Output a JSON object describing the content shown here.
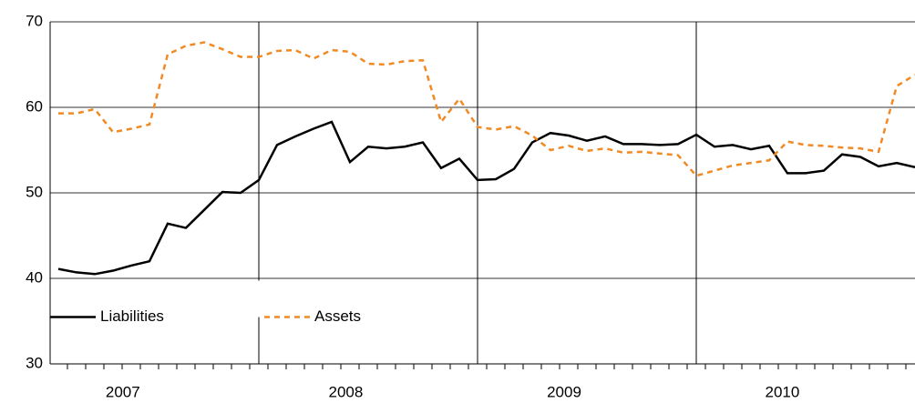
{
  "chart_data": {
    "type": "line",
    "x": [
      1,
      2,
      3,
      4,
      5,
      6,
      7,
      8,
      9,
      10,
      11,
      12,
      13,
      14,
      15,
      16,
      17,
      18,
      19,
      20,
      21,
      22,
      23,
      24,
      25,
      26,
      27,
      28,
      29,
      30,
      31,
      32,
      33,
      34,
      35,
      36,
      37,
      38,
      39,
      40,
      41,
      42,
      43,
      44,
      45,
      46,
      47,
      48
    ],
    "series": [
      {
        "name": "Liabilities",
        "color": "#000000",
        "dashed": false,
        "values": [
          41.1,
          40.7,
          40.5,
          40.9,
          41.5,
          42.0,
          46.4,
          45.9,
          48.0,
          50.1,
          50.0,
          51.5,
          55.6,
          56.6,
          57.5,
          58.3,
          53.6,
          55.4,
          55.2,
          55.4,
          55.9,
          52.9,
          54.0,
          51.5,
          51.6,
          52.8,
          55.9,
          57.0,
          56.7,
          56.1,
          56.6,
          55.7,
          55.7,
          55.6,
          55.7,
          56.8,
          55.4,
          55.6,
          55.1,
          55.5,
          52.3,
          52.3,
          52.6,
          54.5,
          54.2,
          53.1,
          53.5,
          53.0
        ]
      },
      {
        "name": "Assets",
        "color": "#f08a24",
        "dashed": true,
        "values": [
          59.3,
          59.3,
          59.8,
          57.1,
          57.5,
          58.0,
          66.2,
          67.2,
          67.6,
          66.8,
          65.9,
          65.9,
          66.6,
          66.7,
          65.7,
          66.7,
          66.5,
          65.1,
          65.0,
          65.4,
          65.5,
          58.3,
          61.0,
          57.7,
          57.4,
          57.8,
          56.7,
          55.0,
          55.5,
          54.9,
          55.2,
          54.7,
          54.8,
          54.6,
          54.4,
          52.0,
          52.6,
          53.2,
          53.5,
          53.8,
          56.0,
          55.6,
          55.5,
          55.3,
          55.2,
          54.8,
          62.5,
          63.8
        ]
      }
    ],
    "xlim": [
      0.55,
      48
    ],
    "xticks": [
      {
        "value": 4.54,
        "label": "2007"
      },
      {
        "value": 16.77,
        "label": "2008"
      },
      {
        "value": 28.75,
        "label": "2009"
      },
      {
        "value": 40.72,
        "label": "2010"
      }
    ],
    "xminor": [
      1.5,
      2.5,
      3.5,
      4.5,
      5.5,
      6.5,
      7.5,
      8.5,
      9.5,
      10.5,
      11.5,
      12.5,
      13.5,
      14.5,
      15.5,
      16.5,
      17.5,
      18.5,
      19.5,
      20.5,
      21.5,
      22.5,
      23.5,
      24.5,
      25.5,
      26.5,
      27.5,
      28.5,
      29.5,
      30.5,
      31.5,
      32.5,
      33.5,
      34.5,
      35.5,
      36.5,
      37.5,
      38.5,
      39.5,
      40.5,
      41.5,
      42.5,
      43.5,
      44.5,
      45.5,
      46.5,
      47.5
    ],
    "vlines": [
      12,
      24,
      36
    ],
    "ylim": [
      30,
      70
    ],
    "yticks": [
      30,
      40,
      50,
      60,
      70
    ],
    "grid": true,
    "legend": "lower left"
  }
}
